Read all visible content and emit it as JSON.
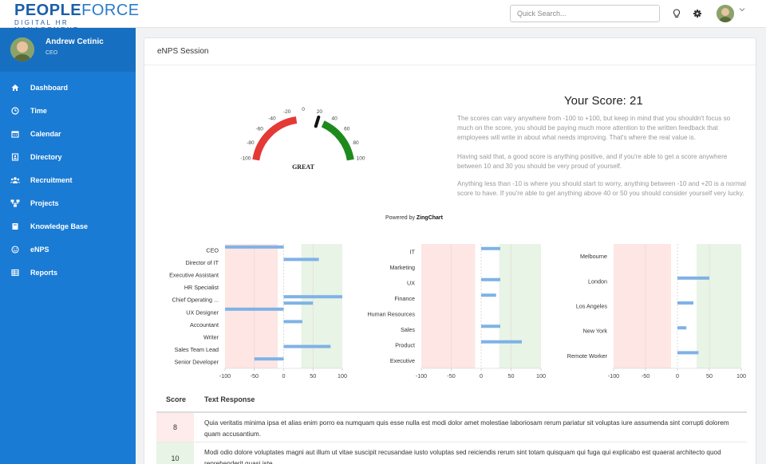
{
  "brand": {
    "main_a": "PEOPLE",
    "main_b": "FORCE",
    "sub": "DIGITAL HR MANAGEMENT"
  },
  "search": {
    "placeholder": "Quick Search..."
  },
  "user": {
    "name": "Andrew Cetinic",
    "role": "CEO"
  },
  "nav": [
    {
      "label": "Dashboard",
      "icon": "home-icon"
    },
    {
      "label": "Time",
      "icon": "clock-icon"
    },
    {
      "label": "Calendar",
      "icon": "calendar-icon"
    },
    {
      "label": "Directory",
      "icon": "directory-icon"
    },
    {
      "label": "Recruitment",
      "icon": "users-icon"
    },
    {
      "label": "Projects",
      "icon": "sitemap-icon"
    },
    {
      "label": "Knowledge Base",
      "icon": "book-icon"
    },
    {
      "label": "eNPS",
      "icon": "smile-icon"
    },
    {
      "label": "Reports",
      "icon": "table-icon"
    }
  ],
  "card": {
    "title": "eNPS Session"
  },
  "gauge": {
    "label": "GREAT",
    "value": 21,
    "ticks": [
      "-100",
      "-80",
      "-60",
      "-40",
      "-20",
      "0",
      "20",
      "40",
      "60",
      "80",
      "100"
    ],
    "powered_by_prefix": "Powered by ",
    "powered_by_brand": "ZingChart",
    "colors": {
      "negative": "#e53935",
      "positive": "#1e8a1e",
      "needle": "#111111"
    }
  },
  "score": {
    "title": "Your Score: 21",
    "paragraphs": [
      "The scores can vary anywhere from -100 to +100, but keep in mind that you shouldn't focus so much on the score, you should be paying much more attention to the written feedback that employees will write in about what needs improving. That's where the real value is.",
      "Having said that, a good score is anything positive, and if you're able to get a score anywhere between 10 and 30 you should be very proud of yourself.",
      "Anything less than -10 is where you should start to worry, anything between -10 and +20 is a normal score to have. If you're able to get anything above 40 or 50 you should consider yourself very lucky."
    ]
  },
  "chart_data": [
    {
      "type": "bar",
      "orientation": "horizontal",
      "categories": [
        "CEO",
        "Director of IT",
        "Executive Assistant",
        "HR Specialist",
        "Chief Operating ...",
        "UX Designer",
        "Accountant",
        "Writer",
        "Sales Team Lead",
        "Senior Developer"
      ],
      "values": [
        -100,
        60,
        0,
        0,
        100,
        -100,
        32,
        0,
        80,
        -50
      ],
      "secondary_values": [
        null,
        null,
        null,
        null,
        50,
        null,
        null,
        null,
        null,
        null
      ],
      "xlim": [
        -100,
        100
      ],
      "xticks": [
        "-100",
        "-50",
        "0",
        "50",
        "100"
      ],
      "bands": {
        "negative_until": -10,
        "positive_from": 30
      }
    },
    {
      "type": "bar",
      "orientation": "horizontal",
      "categories": [
        "IT",
        "Marketing",
        "UX",
        "Finance",
        "Human Resources",
        "Sales",
        "Product",
        "Executive"
      ],
      "values": [
        32,
        0,
        32,
        25,
        0,
        32,
        68,
        0
      ],
      "xlim": [
        -100,
        100
      ],
      "xticks": [
        "-100",
        "-50",
        "0",
        "50",
        "100"
      ],
      "bands": {
        "negative_until": -10,
        "positive_from": 30
      }
    },
    {
      "type": "bar",
      "orientation": "horizontal",
      "categories": [
        "Melbourne",
        "London",
        "Los Angeles",
        "New York",
        "Remote Worker"
      ],
      "values": [
        0,
        50,
        25,
        14,
        33
      ],
      "xlim": [
        -100,
        100
      ],
      "xticks": [
        "-100",
        "-50",
        "0",
        "50",
        "100"
      ],
      "bands": {
        "negative_until": -10,
        "positive_from": 30
      }
    }
  ],
  "table": {
    "headers": {
      "score": "Score",
      "text": "Text Response"
    },
    "rows": [
      {
        "score": "8",
        "text": "Quia veritatis minima ipsa et alias enim porro ea numquam quis esse nulla est modi dolor amet molestiae laboriosam rerum pariatur sit voluptas iure assumenda sint corrupti dolorem quam accusantium.",
        "color": "#fdeceb"
      },
      {
        "score": "10",
        "text": "Modi odio dolore voluptates magni aut illum ut vitae suscipit recusandae iusto voluptas sed reiciendis rerum sint totam quisquam qui fuga qui explicabo est quaerat architecto quod reprehenderit quasi iste.",
        "color": "#e8f4e6"
      }
    ]
  }
}
